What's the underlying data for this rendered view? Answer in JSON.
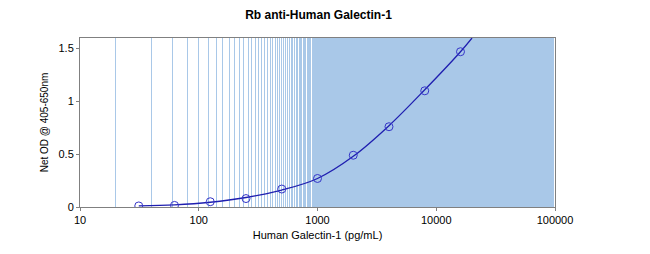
{
  "chart_data": {
    "type": "scatter",
    "title": "Rb anti-Human Galectin-1",
    "x_label": "Human Galectin-1 (pg/mL)",
    "y_label": "Net OD @ 405-650nm",
    "log": "x",
    "grid": true,
    "xlim": [
      10,
      100000
    ],
    "xticks": [
      10,
      100,
      1000,
      10000,
      100000
    ],
    "ylim": [
      0,
      1.6
    ],
    "yticks": [
      0,
      0.5,
      1,
      1.5
    ],
    "series": [
      {
        "type": "line",
        "color": "#1f1fb0",
        "line_style": "solid",
        "x": [
          31.25,
          62.5,
          125,
          250,
          500,
          1000,
          2000,
          4000,
          8000,
          16000,
          20000
        ],
        "values": [
          0.01,
          0.02,
          0.045,
          0.09,
          0.16,
          0.27,
          0.48,
          0.77,
          1.11,
          1.47,
          1.6
        ]
      },
      {
        "type": "scatter",
        "color": "#3535c8",
        "marker": "circle-open",
        "x": [
          31.25,
          62.5,
          125,
          250,
          500,
          1000,
          2000,
          4000,
          8000,
          16000
        ],
        "values": [
          0.01,
          0.015,
          0.05,
          0.08,
          0.17,
          0.27,
          0.49,
          0.76,
          1.1,
          1.47
        ]
      }
    ]
  }
}
